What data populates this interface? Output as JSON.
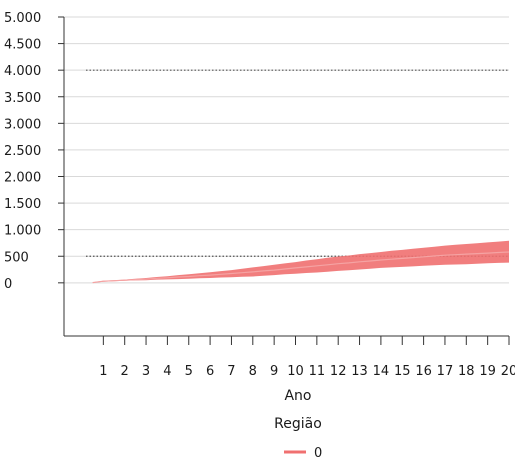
{
  "chart_data": {
    "type": "area",
    "xlabel": "Ano",
    "ylabel": "",
    "x_categories": [
      1,
      2,
      3,
      4,
      5,
      6,
      7,
      8,
      9,
      10,
      11,
      12,
      13,
      14,
      15,
      16,
      17,
      18,
      19,
      20
    ],
    "x_tick_labels": [
      "1",
      "2",
      "3",
      "4",
      "5",
      "6",
      "7",
      "8",
      "9",
      "10",
      "11",
      "12",
      "13",
      "14",
      "15",
      "16",
      "17",
      "18",
      "19",
      "20"
    ],
    "y_range": [
      -1000,
      5000
    ],
    "y_ticks": [
      0,
      500,
      1000,
      1500,
      2000,
      2500,
      3000,
      3500,
      4000,
      4500,
      5000
    ],
    "y_tick_labels": [
      "0",
      "500",
      "1.000",
      "1.500",
      "2.000",
      "2.500",
      "3.000",
      "3.500",
      "4.000",
      "4.500",
      "5.000"
    ],
    "grid": "horizontal",
    "reference_lines": [
      {
        "y": 4000,
        "style": "dotted"
      },
      {
        "y": 500,
        "style": "dotted"
      }
    ],
    "legend": {
      "title": "Região",
      "placement": "bottom",
      "entries": [
        {
          "name": "0",
          "color": "#f07070"
        }
      ]
    },
    "series": [
      {
        "name": "0",
        "color": "#f07070",
        "x": [
          0.5,
          1,
          1.5,
          2,
          2.5,
          3,
          3.5,
          4,
          4.5,
          5,
          5.5,
          6,
          6.5,
          7,
          7.5,
          8,
          8.5,
          9,
          9.5,
          10,
          10.5,
          11,
          11.5,
          12,
          12.5,
          13,
          13.5,
          14,
          14.5,
          15,
          15.5,
          16,
          16.5,
          17,
          17.5,
          18,
          18.5,
          19,
          19.5,
          20
        ],
        "band_low": [
          0,
          20,
          30,
          40,
          45,
          50,
          60,
          65,
          70,
          75,
          85,
          90,
          100,
          105,
          115,
          120,
          135,
          145,
          160,
          170,
          185,
          195,
          210,
          225,
          235,
          250,
          265,
          280,
          290,
          300,
          310,
          320,
          330,
          340,
          345,
          350,
          360,
          370,
          375,
          380
        ],
        "band_high": [
          10,
          40,
          50,
          60,
          75,
          90,
          110,
          125,
          145,
          160,
          180,
          200,
          220,
          240,
          265,
          290,
          315,
          340,
          365,
          390,
          420,
          445,
          470,
          495,
          515,
          540,
          560,
          580,
          605,
          620,
          640,
          660,
          680,
          700,
          715,
          730,
          745,
          760,
          775,
          790
        ],
        "center": [
          5,
          30,
          40,
          50,
          60,
          70,
          85,
          95,
          110,
          120,
          135,
          145,
          160,
          175,
          190,
          205,
          225,
          240,
          260,
          280,
          300,
          320,
          340,
          360,
          375,
          395,
          410,
          430,
          445,
          460,
          475,
          490,
          505,
          520,
          530,
          540,
          550,
          560,
          570,
          580
        ]
      }
    ]
  }
}
